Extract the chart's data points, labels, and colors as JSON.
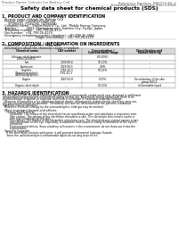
{
  "bg_color": "#ffffff",
  "header_left": "Product Name: Lithium Ion Battery Cell",
  "header_right_line1": "Reference Number: RB501V-40_1",
  "header_right_line2": "Establishment / Revision: Dec.7.2010",
  "title": "Safety data sheet for chemical products (SDS)",
  "section1_title": "1. PRODUCT AND COMPANY IDENTIFICATION",
  "section1_lines": [
    "· Product name: Lithium Ion Battery Cell",
    "· Product code: Cylindrical-type cell",
    "     (JY18650U, JY14500U, JY18650A)",
    "· Company name:   Sanyo Electric Co., Ltd., Mobile Energy Company",
    "· Address:         2001, Kaminakamachi, Sumoto-City, Hyogo, Japan",
    "· Telephone number:  +81-799-26-4111",
    "· Fax number:  +81-799-26-4129",
    "· Emergency telephone number (daytime): +81-799-26-3862",
    "                                 (Night and holiday): +81-799-26-4129"
  ],
  "section2_title": "2. COMPOSITION / INFORMATION ON INGREDIENTS",
  "section2_sub": "· Substance or preparation: Preparation",
  "section2_sub2": "· Information about the chemical nature of product:",
  "table_col_headers": [
    "Chemical name",
    "CAS number",
    "Concentration /\nConcentration range",
    "Classification and\nhazard labeling"
  ],
  "table_rows": [
    [
      "Lithium cobalt laminate\n(LiMn-Co)(NiO2)",
      "-",
      "(30-60%)",
      "-"
    ],
    [
      "Iron",
      "7439-89-6",
      "10-20%",
      "-"
    ],
    [
      "Aluminum",
      "7429-90-5",
      "2-8%",
      "-"
    ],
    [
      "Graphite\n(Natural graphite)\n(Artificial graphite)",
      "7782-42-5\n7782-42-3",
      "10-25%",
      "-"
    ],
    [
      "Copper",
      "7440-50-8",
      "5-15%",
      "Sensitization of the skin\ngroup R43.2"
    ],
    [
      "Organic electrolyte",
      "-",
      "10-20%",
      "Inflammable liquid"
    ]
  ],
  "section3_title": "3. HAZARDS IDENTIFICATION",
  "section3_body": [
    "For the battery cell, chemical materials are stored in a hermetically sealed metal case, designed to withstand",
    "temperatures and pressures encountered during normal use. As a result, during normal use, there is no",
    "physical danger of ignition or explosion and there is no danger of hazardous materials leakage.",
    "  However, if exposed to a fire added mechanical shocks, decomposed, violent electric shock any miss-use,",
    "the gas release cannot be operated. The battery cell case will be breached of fire-patterns, hazardous",
    "materials may be released.",
    "  Moreover, if heated strongly by the surrounding fire, solid gas may be emitted."
  ],
  "section3_sub1_title": "· Most important hazard and effects:",
  "section3_sub1_lines": [
    "    Human health effects:",
    "        Inhalation: The release of the electrolyte has an anesthesia action and stimulates a respiratory tract.",
    "        Skin contact: The release of the electrolyte stimulates a skin. The electrolyte skin contact causes a",
    "        sore and stimulation on the skin.",
    "        Eye contact: The release of the electrolyte stimulates eyes. The electrolyte eye contact causes a sore",
    "        and stimulation on the eye. Especially, a substance that causes a strong inflammation of the eyes is",
    "        contained.",
    "        Environmental effects: Since a battery cell remains in the environment, do not throw out it into the",
    "        environment."
  ],
  "section3_sub2_title": "· Specific hazards:",
  "section3_sub2_lines": [
    "    If the electrolyte contacts with water, it will generate detrimental hydrogen fluoride.",
    "    Since the used electrolyte is inflammable liquid, do not long close to fire."
  ],
  "line_color": "#aaaaaa",
  "text_color": "#000000",
  "header_color": "#666666",
  "table_header_bg": "#d8d8d8"
}
